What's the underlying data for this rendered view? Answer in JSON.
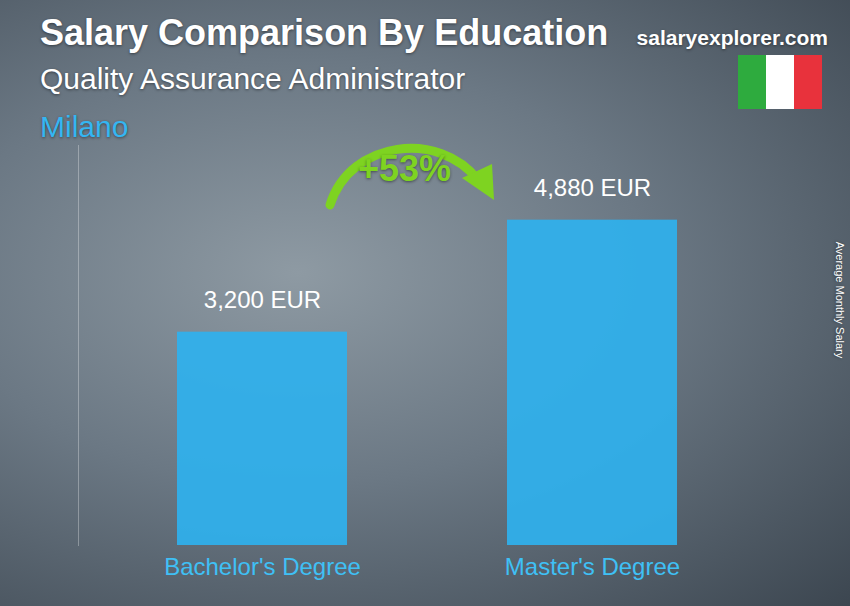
{
  "chart_data": {
    "type": "bar",
    "title": "Salary Comparison By Education",
    "subtitle": "Quality Assurance Administrator",
    "location": "Milano",
    "source": "salaryexplorer.com",
    "ylabel": "Average Monthly Salary",
    "annotations": [
      "+53%"
    ],
    "categories": [
      "Bachelor's Degree",
      "Master's Degree"
    ],
    "values": [
      3200,
      4880
    ],
    "value_labels": [
      "3,200 EUR",
      "4,880 EUR"
    ],
    "color": "#2fb1ee",
    "ylim": [
      0,
      6000
    ],
    "yticks": [],
    "grid": false,
    "data_labels": true,
    "tick_labels": "x"
  }
}
